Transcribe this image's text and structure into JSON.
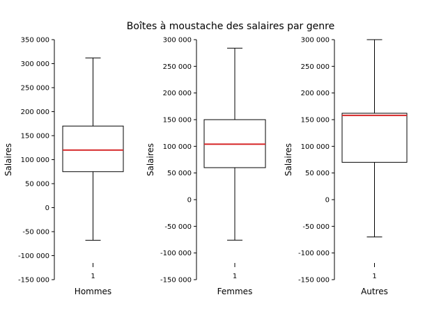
{
  "chart_data": {
    "type": "boxplot",
    "title": "Boîtes à moustache des salaires par genre",
    "medianColor": "#d62728",
    "panels": [
      {
        "xlabel": "Hommes",
        "ylabel": "Salaires",
        "category": "1",
        "ylim": [
          -150000,
          350000
        ],
        "yticks": [
          350000,
          300000,
          250000,
          200000,
          150000,
          100000,
          50000,
          0,
          -50000,
          -100000,
          -150000
        ],
        "yticklabels": [
          "350 000",
          "300 000",
          "250 000",
          "200 000",
          "150 000",
          "100 000",
          "50 000",
          "0",
          "-50 000",
          "-100 000",
          "-150 000"
        ],
        "box": {
          "whisker_low": -68000,
          "q1": 75000,
          "median": 120000,
          "q3": 170000,
          "whisker_high": 312000
        }
      },
      {
        "xlabel": "Femmes",
        "ylabel": "Salaires",
        "category": "1",
        "ylim": [
          -150000,
          300000
        ],
        "yticks": [
          300000,
          250000,
          200000,
          150000,
          100000,
          50000,
          0,
          -50000,
          -100000,
          -150000
        ],
        "yticklabels": [
          "300 000",
          "250 000",
          "200 000",
          "150 000",
          "100 000",
          "50 000",
          "0",
          "-50 000",
          "-100 000",
          "-150 000"
        ],
        "box": {
          "whisker_low": -76000,
          "q1": 60000,
          "median": 104000,
          "q3": 150000,
          "whisker_high": 284000
        }
      },
      {
        "xlabel": "Autres",
        "ylabel": "Salaires",
        "category": "1",
        "ylim": [
          -150000,
          300000
        ],
        "yticks": [
          300000,
          250000,
          200000,
          150000,
          100000,
          50000,
          0,
          -50000,
          -100000,
          -150000
        ],
        "yticklabels": [
          "300 000",
          "250 000",
          "200 000",
          "150 000",
          "100 000",
          "50 000",
          "0",
          "-50 000",
          "-100 000",
          "-150 000"
        ],
        "box": {
          "whisker_low": -70000,
          "q1": 70000,
          "median": 158000,
          "q3": 162000,
          "whisker_high": 300000
        }
      }
    ]
  }
}
